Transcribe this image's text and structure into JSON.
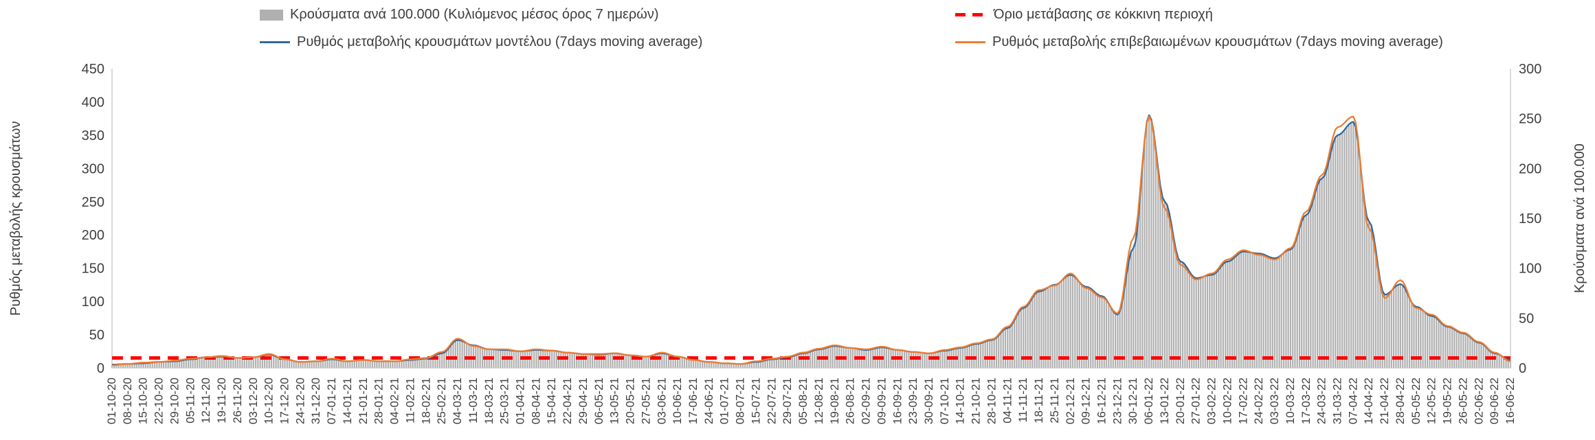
{
  "figure": {
    "background": "#ffffff",
    "text_color": "#3f3f3f"
  },
  "chart_data": {
    "type": "bar",
    "subtype": "combo-bar-line",
    "title": "",
    "grid": false,
    "legend_position": "top",
    "left_axis": {
      "label": "Ρυθμός μεταβολής κρουσμάτων",
      "min": 0,
      "max": 450,
      "step": 50
    },
    "right_axis": {
      "label": "Κρούσματα ανά 100.000",
      "min": 0,
      "max": 300,
      "step": 50
    },
    "categories": [
      "01-10-20",
      "08-10-20",
      "15-10-20",
      "22-10-20",
      "29-10-20",
      "05-11-20",
      "12-11-20",
      "19-11-20",
      "26-11-20",
      "03-12-20",
      "10-12-20",
      "17-12-20",
      "24-12-20",
      "31-12-20",
      "07-01-21",
      "14-01-21",
      "21-01-21",
      "28-01-21",
      "04-02-21",
      "11-02-21",
      "18-02-21",
      "25-02-21",
      "04-03-21",
      "11-03-21",
      "18-03-21",
      "25-03-21",
      "01-04-21",
      "08-04-21",
      "15-04-21",
      "22-04-21",
      "29-04-21",
      "06-05-21",
      "13-05-21",
      "20-05-21",
      "27-05-21",
      "03-06-21",
      "10-06-21",
      "17-06-21",
      "24-06-21",
      "01-07-21",
      "08-07-21",
      "15-07-21",
      "22-07-21",
      "29-07-21",
      "05-08-21",
      "12-08-21",
      "19-08-21",
      "26-08-21",
      "02-09-21",
      "09-09-21",
      "16-09-21",
      "23-09-21",
      "30-09-21",
      "07-10-21",
      "14-10-21",
      "21-10-21",
      "28-10-21",
      "04-11-21",
      "11-11-21",
      "18-11-21",
      "25-11-21",
      "02-12-21",
      "09-12-21",
      "16-12-21",
      "23-12-21",
      "30-12-21",
      "06-01-22",
      "13-01-22",
      "20-01-22",
      "27-01-22",
      "03-02-22",
      "10-02-22",
      "17-02-22",
      "24-02-22",
      "03-03-22",
      "10-03-22",
      "17-03-22",
      "24-03-22",
      "31-03-22",
      "07-04-22",
      "14-04-22",
      "21-04-22",
      "28-04-22",
      "05-05-22",
      "12-05-22",
      "19-05-22",
      "26-05-22",
      "02-06-22",
      "09-06-22",
      "16-06-22"
    ],
    "series": [
      {
        "name": "Κρούσματα ανά 100.000 (Κυλιόμενος μέσος όρος 7 ημερών)",
        "type": "bar",
        "axis": "right",
        "color": "#b0b0b0",
        "values": [
          3,
          4,
          5,
          6,
          7,
          9,
          11,
          11,
          10,
          11,
          13,
          9,
          6,
          7,
          9,
          7,
          8,
          7,
          7,
          8,
          9,
          15,
          28,
          23,
          19,
          18,
          17,
          18,
          17,
          15,
          14,
          13,
          15,
          13,
          11,
          15,
          11,
          8,
          6,
          5,
          4,
          6,
          9,
          11,
          15,
          19,
          22,
          20,
          18,
          21,
          18,
          16,
          15,
          17,
          20,
          24,
          28,
          40,
          60,
          77,
          83,
          93,
          81,
          72,
          53,
          120,
          253,
          167,
          107,
          90,
          93,
          107,
          117,
          115,
          110,
          119,
          153,
          190,
          233,
          247,
          147,
          73,
          84,
          61,
          52,
          41,
          35,
          25,
          15,
          8
        ]
      },
      {
        "name": "Ρυθμός μεταβολής κρουσμάτων μοντέλου (7days moving average)",
        "type": "line",
        "axis": "left",
        "color": "#33679a",
        "values": [
          5,
          6,
          7,
          9,
          10,
          13,
          16,
          17,
          15,
          16,
          20,
          13,
          9,
          10,
          13,
          10,
          12,
          10,
          10,
          12,
          14,
          22,
          42,
          34,
          28,
          27,
          25,
          27,
          26,
          23,
          21,
          20,
          22,
          19,
          17,
          22,
          17,
          12,
          9,
          7,
          6,
          9,
          13,
          16,
          22,
          28,
          33,
          30,
          27,
          31,
          27,
          24,
          22,
          26,
          30,
          36,
          42,
          60,
          90,
          115,
          125,
          140,
          122,
          108,
          80,
          180,
          380,
          250,
          160,
          135,
          140,
          160,
          175,
          172,
          165,
          178,
          230,
          285,
          350,
          370,
          220,
          110,
          126,
          92,
          78,
          62,
          52,
          38,
          22,
          12
        ]
      },
      {
        "name": "Ρυθμός μεταβολής επιβεβαιωμένων κρουσμάτων (7days moving average)",
        "type": "line",
        "axis": "left",
        "color": "#ed7d31",
        "values": [
          4,
          6,
          8,
          9,
          11,
          14,
          16,
          18,
          15,
          16,
          21,
          13,
          9,
          10,
          14,
          10,
          12,
          10,
          10,
          13,
          15,
          24,
          44,
          33,
          28,
          28,
          25,
          28,
          26,
          23,
          21,
          21,
          22,
          19,
          17,
          23,
          17,
          12,
          9,
          7,
          6,
          10,
          14,
          17,
          23,
          29,
          34,
          30,
          28,
          32,
          27,
          24,
          22,
          27,
          31,
          37,
          43,
          62,
          92,
          117,
          124,
          142,
          120,
          106,
          82,
          195,
          378,
          240,
          155,
          133,
          142,
          163,
          177,
          170,
          163,
          180,
          235,
          290,
          362,
          378,
          210,
          105,
          132,
          90,
          80,
          63,
          53,
          39,
          23,
          10
        ]
      },
      {
        "name": "Όριο μετάβασης σε κόκκινη περιοχή",
        "type": "threshold",
        "axis": "left",
        "color": "#ff0000",
        "value": 15
      }
    ]
  }
}
